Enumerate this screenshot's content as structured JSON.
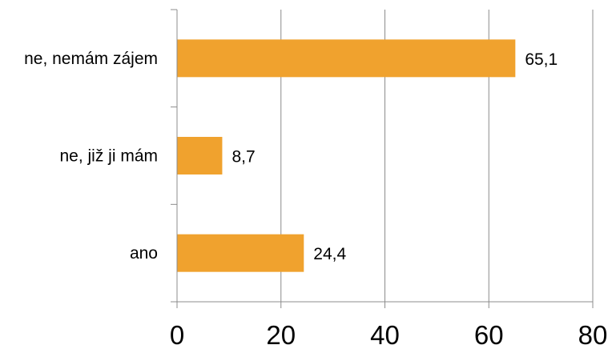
{
  "chart_data": {
    "type": "bar",
    "orientation": "horizontal",
    "categories": [
      "ne, nemám zájem",
      "ne, již ji mám",
      "ano"
    ],
    "values": [
      65.1,
      8.7,
      24.4
    ],
    "value_labels": [
      "65,1",
      "8,7",
      "24,4"
    ],
    "x_ticks": [
      "0",
      "20",
      "40",
      "60",
      "80"
    ],
    "xlim": [
      0,
      80
    ],
    "grid": "vertical",
    "legend": "none",
    "bar_color": "#F0A22E",
    "title": "",
    "xlabel": "",
    "ylabel": ""
  }
}
